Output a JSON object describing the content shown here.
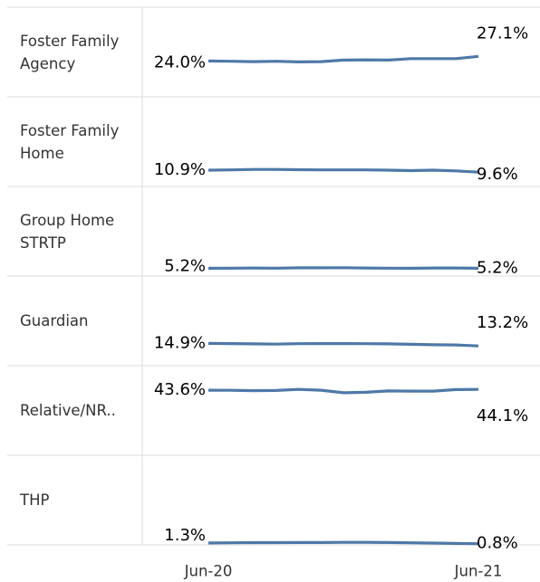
{
  "chart_data": {
    "type": "line",
    "categories": [
      "Jun-20",
      null,
      null,
      null,
      null,
      null,
      null,
      null,
      null,
      null,
      null,
      null,
      "Jun-21"
    ],
    "ylim": [
      0,
      60
    ],
    "color": "#4e79a7",
    "series": [
      {
        "name": "Foster Family Agency",
        "values": [
          24.0,
          23.8,
          23.6,
          23.8,
          23.4,
          23.6,
          24.6,
          24.8,
          24.6,
          25.6,
          25.6,
          25.6,
          27.1
        ],
        "value_labels": [
          "24.0%",
          null,
          null,
          null,
          null,
          null,
          null,
          null,
          null,
          null,
          null,
          null,
          "27.1%"
        ]
      },
      {
        "name": "Foster Family Home",
        "values": [
          10.9,
          11.1,
          11.4,
          11.4,
          11.2,
          11.1,
          11.1,
          11.1,
          10.9,
          10.6,
          10.9,
          10.4,
          9.6
        ],
        "value_labels": [
          "10.9%",
          null,
          null,
          null,
          null,
          null,
          null,
          null,
          null,
          null,
          null,
          null,
          "9.6%"
        ]
      },
      {
        "name": "Group Home STRTP",
        "values": [
          5.2,
          5.3,
          5.4,
          5.3,
          5.5,
          5.5,
          5.6,
          5.4,
          5.3,
          5.2,
          5.4,
          5.4,
          5.2
        ],
        "value_labels": [
          "5.2%",
          null,
          null,
          null,
          null,
          null,
          null,
          null,
          null,
          null,
          null,
          null,
          "5.2%"
        ]
      },
      {
        "name": "Guardian",
        "values": [
          14.9,
          14.8,
          14.6,
          14.4,
          14.7,
          14.8,
          14.8,
          14.7,
          14.6,
          14.3,
          14.0,
          13.9,
          13.2
        ],
        "value_labels": [
          "14.9%",
          null,
          null,
          null,
          null,
          null,
          null,
          null,
          null,
          null,
          null,
          null,
          "13.2%"
        ]
      },
      {
        "name": "Relative/NR..",
        "values": [
          43.6,
          43.5,
          43.3,
          43.4,
          44.1,
          43.6,
          41.9,
          42.2,
          43.1,
          43.0,
          43.0,
          44.0,
          44.1
        ],
        "value_labels": [
          "43.6%",
          null,
          null,
          null,
          null,
          null,
          null,
          null,
          null,
          null,
          null,
          null,
          "44.1%"
        ]
      },
      {
        "name": "THP",
        "values": [
          1.3,
          1.4,
          1.5,
          1.5,
          1.6,
          1.6,
          1.7,
          1.7,
          1.6,
          1.4,
          1.2,
          1.0,
          0.8
        ],
        "value_labels": [
          "1.3%",
          null,
          null,
          null,
          null,
          null,
          null,
          null,
          null,
          null,
          null,
          null,
          "0.8%"
        ]
      }
    ]
  }
}
